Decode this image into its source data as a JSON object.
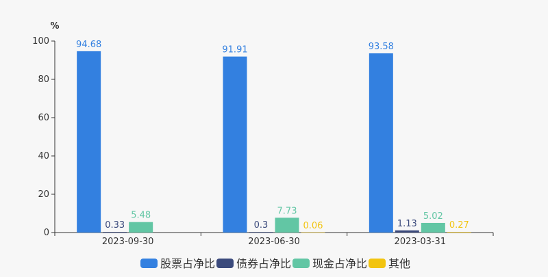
{
  "chart_data": {
    "type": "bar",
    "ylabel": "%",
    "ylim": [
      0,
      100
    ],
    "yticks": [
      0,
      20,
      40,
      60,
      80,
      100
    ],
    "categories": [
      "2023-09-30",
      "2023-06-30",
      "2023-03-31"
    ],
    "series": [
      {
        "name": "股票占净比",
        "color": "#3380e0",
        "values": [
          94.68,
          91.91,
          93.58
        ],
        "labels": [
          "94.68",
          "91.91",
          "93.58"
        ]
      },
      {
        "name": "债券占净比",
        "color": "#3b4a7c",
        "values": [
          0.33,
          0.3,
          1.13
        ],
        "labels": [
          "0.33",
          "0.3",
          "1.13"
        ]
      },
      {
        "name": "现金占净比",
        "color": "#62c6a4",
        "values": [
          5.48,
          7.73,
          5.02
        ],
        "labels": [
          "5.48",
          "7.73",
          "5.02"
        ]
      },
      {
        "name": "其他",
        "color": "#f2c40f",
        "values": [
          null,
          0.06,
          0.27
        ],
        "labels": [
          null,
          "0.06",
          "0.27"
        ]
      }
    ],
    "legend_position": "bottom",
    "grid": false
  }
}
